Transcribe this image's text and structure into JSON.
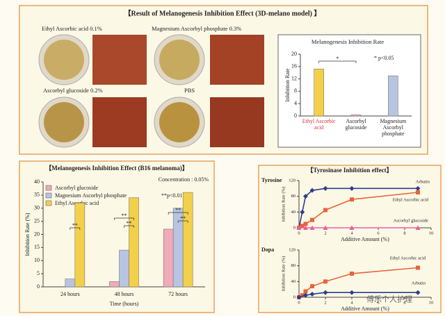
{
  "photo_panel": {
    "title": "【Result of Melanogenesis Inhibition Effect (3D-melano model) 】",
    "photo_labels": [
      "Ethyl Ascorbic acid  0.1%",
      "Magnesium Ascorbyl phosphate  0.3%",
      "Ascorbyl glucoside  0.2%",
      "PBS"
    ]
  },
  "chart_data": [
    {
      "type": "bar",
      "title": "Melanogenesis Inhibition Rate",
      "y_label": "Inhibition Rate",
      "categories": [
        "Ethyl Ascorbic acid",
        "Ascorbyl glucoside",
        "Magnesium Ascorbyl phosphate"
      ],
      "values": [
        15.2,
        0.4,
        13
      ],
      "colors": [
        "#f3d04a",
        "#f2a9b8",
        "#b7c5e2"
      ],
      "ylim": [
        0,
        20
      ],
      "yticks": [
        0,
        4,
        8,
        12,
        16,
        20
      ],
      "significance_label": "*",
      "p_note": "* p<0.05"
    },
    {
      "type": "grouped_bar",
      "title": "【Melanogenesis Inhibition Effect (B16 melanoma)】",
      "subtitle": "Concentration : 0.05%",
      "y_label": "Inhibition Rate (%)",
      "x_label": "Time (hours)",
      "categories": [
        "24 hours",
        "48 hours",
        "72 hours"
      ],
      "series": [
        {
          "name": "Ascorbyl glucoside",
          "color": "#f2a9b8",
          "values": [
            0,
            2,
            22
          ]
        },
        {
          "name": "Magnesium Ascorbyl phosphate",
          "color": "#b7c5e2",
          "values": [
            3,
            14,
            30
          ]
        },
        {
          "name": "Ethyl Ascorbic acid",
          "color": "#f3d04a",
          "values": [
            32,
            34,
            36
          ]
        }
      ],
      "ylim": [
        0,
        40
      ],
      "yticks": [
        0,
        5,
        10,
        15,
        20,
        25,
        30,
        35,
        40
      ],
      "significance_label": "**",
      "p_note": "**p<0.01"
    },
    {
      "type": "line",
      "title": "Tyrosine",
      "y_label": "Inhibition Rate (%)",
      "x_label": "Additive Amount (%)",
      "series": [
        {
          "name": "Arbutin",
          "color": "#2c3d8c",
          "marker": "diamond",
          "x": [
            0,
            0.25,
            0.5,
            1,
            2,
            4,
            9
          ],
          "values": [
            0,
            40,
            80,
            95,
            100,
            100,
            100
          ]
        },
        {
          "name": "Ethyl Ascorbic acid",
          "color": "#e8643a",
          "marker": "square",
          "x": [
            0,
            0.25,
            0.5,
            1,
            2,
            4,
            9
          ],
          "values": [
            0,
            5,
            10,
            20,
            45,
            72,
            90
          ]
        },
        {
          "name": "Ascorbyl glucoside",
          "color": "#e860a0",
          "marker": "triangle",
          "x": [
            0,
            0.5,
            1,
            2,
            4,
            9
          ],
          "values": [
            0,
            0,
            0,
            0,
            0,
            0
          ]
        }
      ],
      "xlim": [
        0,
        10
      ],
      "xticks": [
        0,
        2,
        4,
        6,
        8,
        10
      ],
      "ylim": [
        0,
        120
      ],
      "yticks": [
        0,
        40,
        80,
        120
      ]
    },
    {
      "type": "line",
      "title": "Dopa",
      "y_label": "Inhibition Rate (%)",
      "x_label": "Additive Amount (%)",
      "series": [
        {
          "name": "Ethyl Ascorbic acid",
          "color": "#e8643a",
          "marker": "square",
          "x": [
            0,
            0.25,
            0.5,
            1,
            2,
            4,
            9
          ],
          "values": [
            0,
            5,
            15,
            28,
            40,
            60,
            75
          ]
        },
        {
          "name": "Arbutin",
          "color": "#2c3d8c",
          "marker": "diamond",
          "x": [
            0,
            0.5,
            1,
            2,
            4,
            9
          ],
          "values": [
            0,
            5,
            8,
            12,
            12,
            12
          ]
        }
      ],
      "xlim": [
        0,
        10
      ],
      "xticks": [
        0,
        2,
        4,
        6,
        8,
        10
      ],
      "ylim": [
        0,
        120
      ],
      "yticks": [
        0,
        40,
        80,
        120
      ]
    }
  ],
  "tyrosinase_title": "【Tyrosinase Inhibition effect】",
  "watermark": "傅乐个人护理"
}
